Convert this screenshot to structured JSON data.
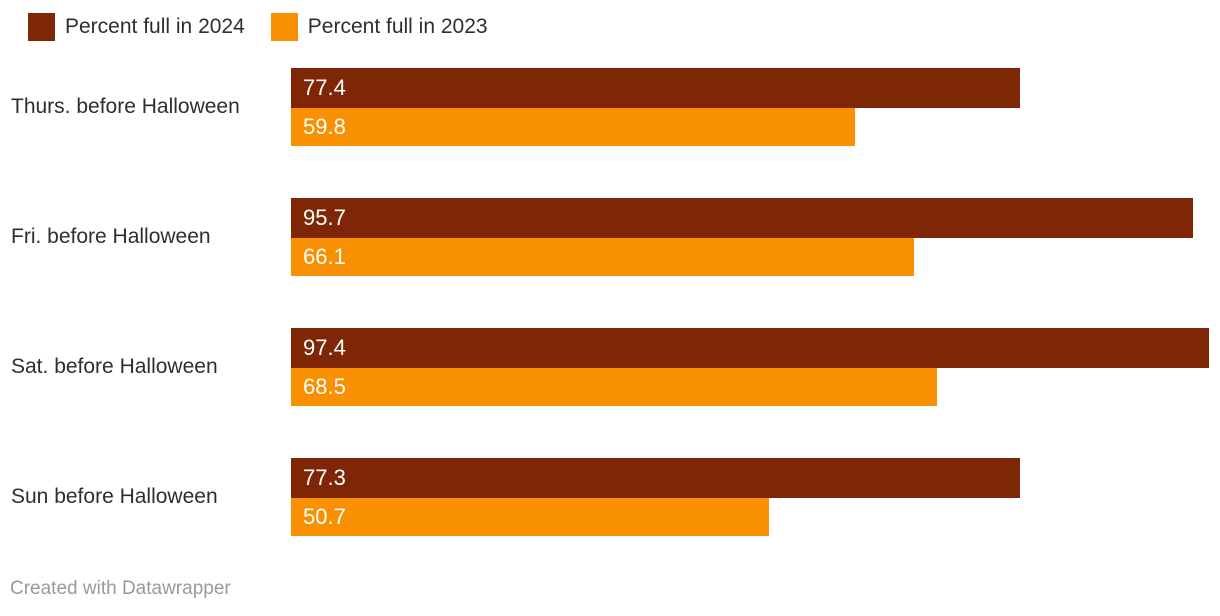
{
  "legend": {
    "items": [
      {
        "key": "2024",
        "label": "Percent full in 2024",
        "color": "#7e2605"
      },
      {
        "key": "2023",
        "label": "Percent full in 2023",
        "color": "#f99002"
      }
    ]
  },
  "footer": {
    "attribution": "Created with Datawrapper"
  },
  "colors": {
    "series_2024": "#7e2605",
    "series_2023": "#f99002",
    "category_label": "#2e2e2e",
    "value_label": "#ffffff",
    "attribution": "#999999",
    "background": "#ffffff"
  },
  "chart_data": {
    "type": "bar",
    "orientation": "horizontal",
    "categories": [
      "Thurs. before Halloween",
      "Fri. before Halloween",
      "Sat. before Halloween",
      "Sun before Halloween"
    ],
    "series": [
      {
        "key": "2024",
        "name": "Percent full in 2024",
        "color": "#7e2605",
        "values": [
          77.4,
          95.7,
          97.4,
          77.3
        ]
      },
      {
        "key": "2023",
        "name": "Percent full in 2023",
        "color": "#f99002",
        "values": [
          59.8,
          66.1,
          68.5,
          50.7
        ]
      }
    ],
    "value_labels_position": "inside-start",
    "xlim": [
      0,
      97.4
    ],
    "grid": false,
    "legend_position": "top-left"
  },
  "layout_note_units": "percent"
}
